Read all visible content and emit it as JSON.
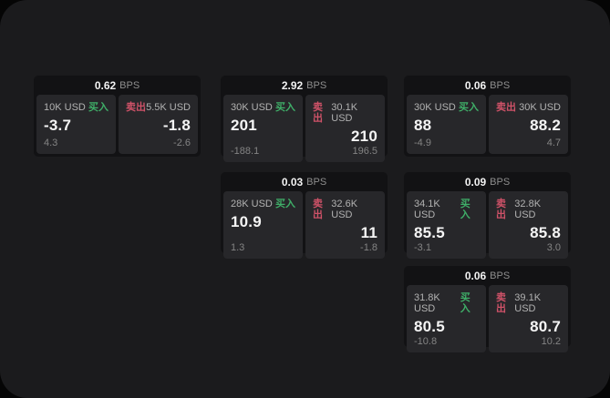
{
  "app": {
    "background_color": "#050505",
    "panel_color": "#1b1b1d",
    "card_color": "#121214",
    "tile_color": "#27272a",
    "buy_color": "#3fae68",
    "sell_color": "#cf5268"
  },
  "labels": {
    "bps": "BPS",
    "buy": "买入",
    "sell": "卖出"
  },
  "cards": [
    {
      "bps": "0.62",
      "buy": {
        "amount": "10K USD",
        "value": "-3.7",
        "delta": "4.3"
      },
      "sell": {
        "amount": "5.5K USD",
        "value": "-1.8",
        "delta": "-2.6"
      }
    },
    {
      "bps": "2.92",
      "buy": {
        "amount": "30K USD",
        "value": "201",
        "delta": "-188.1"
      },
      "sell": {
        "amount": "30.1K USD",
        "value": "210",
        "delta": "196.5"
      }
    },
    {
      "bps": "0.06",
      "buy": {
        "amount": "30K USD",
        "value": "88",
        "delta": "-4.9"
      },
      "sell": {
        "amount": "30K USD",
        "value": "88.2",
        "delta": "4.7"
      }
    },
    {
      "bps": "0.03",
      "buy": {
        "amount": "28K USD",
        "value": "10.9",
        "delta": "1.3"
      },
      "sell": {
        "amount": "32.6K USD",
        "value": "11",
        "delta": "-1.8"
      }
    },
    {
      "bps": "0.09",
      "buy": {
        "amount": "34.1K USD",
        "value": "85.5",
        "delta": "-3.1"
      },
      "sell": {
        "amount": "32.8K USD",
        "value": "85.8",
        "delta": "3.0"
      }
    },
    {
      "bps": "0.06",
      "buy": {
        "amount": "31.8K USD",
        "value": "80.5",
        "delta": "-10.8"
      },
      "sell": {
        "amount": "39.1K USD",
        "value": "80.7",
        "delta": "10.2"
      }
    }
  ]
}
